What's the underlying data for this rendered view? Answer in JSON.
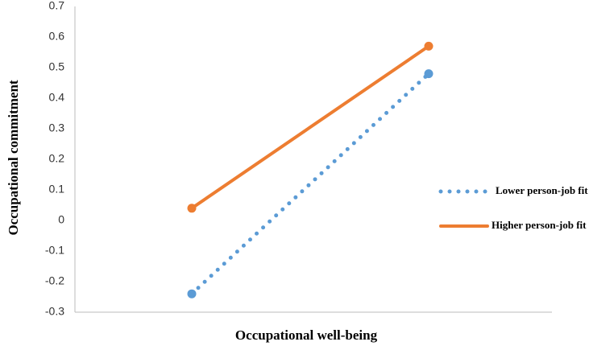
{
  "chart_data": {
    "type": "line",
    "x_label": "Occupational well-being",
    "y_label": "Occupational commitment",
    "categories": [
      null,
      null
    ],
    "series": [
      {
        "name": "Lower person-job fit",
        "color": "#5b9bd5",
        "dash": "dotted",
        "values": [
          -0.24,
          0.48
        ]
      },
      {
        "name": "Higher person-job fit",
        "color": "#ed7d31",
        "dash": "solid",
        "values": [
          0.04,
          0.57
        ]
      }
    ],
    "ylim": [
      -0.3,
      0.7
    ],
    "yticks": [
      -0.3,
      -0.2,
      -0.1,
      0,
      0.1,
      0.2,
      0.3,
      0.4,
      0.5,
      0.6,
      0.7
    ]
  }
}
